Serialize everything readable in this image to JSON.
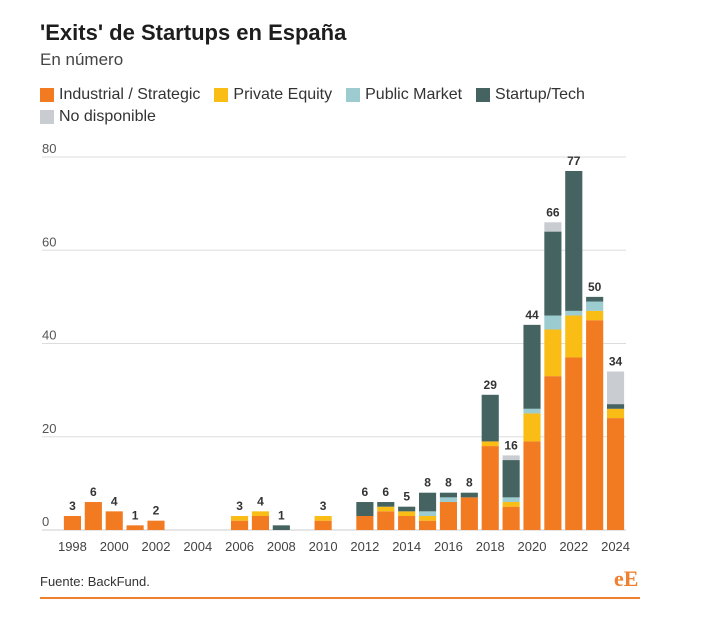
{
  "header": {
    "title": "'Exits' de Startups en España",
    "subtitle": "En número"
  },
  "legend": [
    {
      "label": "Industrial / Strategic",
      "color": "#F27A21"
    },
    {
      "label": "Private Equity",
      "color": "#F9BD16"
    },
    {
      "label": "Public Market",
      "color": "#9CCCD0"
    },
    {
      "label": "Startup/Tech",
      "color": "#456461"
    },
    {
      "label": "No disponible",
      "color": "#C9CDD2"
    }
  ],
  "footer": {
    "source": "Fuente: BackFund.",
    "logo_text": "eE"
  },
  "chart_data": {
    "type": "bar",
    "stacked": true,
    "title": "'Exits' de Startups en España",
    "subtitle": "En número",
    "ylim": [
      0,
      80
    ],
    "yticks": [
      0,
      20,
      40,
      60,
      80
    ],
    "grid": true,
    "legend_position": "top",
    "categories": [
      "1998",
      "1999",
      "2000",
      "2001",
      "2002",
      "2003",
      "2004",
      "2005",
      "2006",
      "2007",
      "2008",
      "2009",
      "2010",
      "2011",
      "2012",
      "2013",
      "2014",
      "2015",
      "2016",
      "2017",
      "2018",
      "2019",
      "2020",
      "2021",
      "2022",
      "2023",
      "2024"
    ],
    "xtick_labels": [
      "1998",
      "2000",
      "2002",
      "2004",
      "2006",
      "2008",
      "2010",
      "2012",
      "2014",
      "2016",
      "2018",
      "2020",
      "2022",
      "2024"
    ],
    "totals": [
      3,
      6,
      4,
      1,
      2,
      null,
      null,
      null,
      3,
      4,
      1,
      null,
      3,
      null,
      6,
      6,
      5,
      8,
      8,
      8,
      29,
      16,
      44,
      66,
      77,
      50,
      34
    ],
    "series": [
      {
        "name": "Industrial / Strategic",
        "color": "#F27A21",
        "values": [
          3,
          6,
          4,
          1,
          2,
          0,
          0,
          0,
          2,
          3,
          0,
          0,
          2,
          0,
          3,
          4,
          3,
          2,
          6,
          7,
          18,
          5,
          19,
          33,
          37,
          45,
          24
        ]
      },
      {
        "name": "Private Equity",
        "color": "#F9BD16",
        "values": [
          0,
          0,
          0,
          0,
          0,
          0,
          0,
          0,
          1,
          1,
          0,
          0,
          1,
          0,
          0,
          1,
          1,
          1,
          0,
          0,
          1,
          1,
          6,
          10,
          9,
          2,
          2
        ]
      },
      {
        "name": "Public Market",
        "color": "#9CCCD0",
        "values": [
          0,
          0,
          0,
          0,
          0,
          0,
          0,
          0,
          0,
          0,
          0,
          0,
          0,
          0,
          0,
          0,
          0,
          1,
          1,
          0,
          0,
          1,
          1,
          3,
          1,
          2,
          0
        ]
      },
      {
        "name": "Startup/Tech",
        "color": "#456461",
        "values": [
          0,
          0,
          0,
          0,
          0,
          0,
          0,
          0,
          0,
          0,
          1,
          0,
          0,
          0,
          3,
          1,
          1,
          4,
          1,
          1,
          10,
          8,
          18,
          18,
          30,
          1,
          1
        ]
      },
      {
        "name": "No disponible",
        "color": "#C9CDD2",
        "values": [
          0,
          0,
          0,
          0,
          0,
          0,
          0,
          0,
          0,
          0,
          0,
          0,
          0,
          0,
          0,
          0,
          0,
          0,
          0,
          0,
          0,
          1,
          0,
          2,
          0,
          0,
          7
        ]
      }
    ]
  }
}
